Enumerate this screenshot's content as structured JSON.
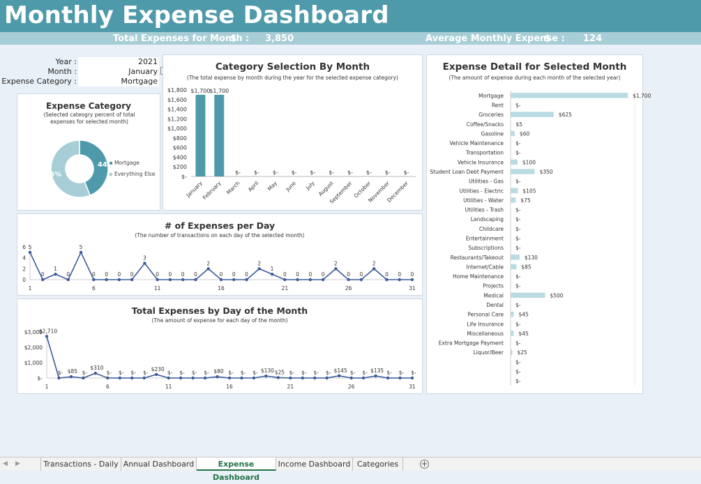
{
  "header": {
    "title": "Monthly Expense Dashboard",
    "total_label": "Total Expenses for Month :",
    "total_currency": "$",
    "total_value": "3,850",
    "avg_label": "Average Monthly Expense :",
    "avg_currency": "$",
    "avg_value": "124"
  },
  "filters": {
    "year_label": "Year :",
    "year_value": "2021",
    "month_label": "Month :",
    "month_value": "January",
    "category_label": "Expense Category :",
    "category_value": "Mortgage"
  },
  "colors": {
    "accent": "#4e9aaa",
    "light_accent": "#a7cdd6",
    "line": "#3c5a99",
    "bar_light": "#b9dbe2"
  },
  "chart_data": [
    {
      "id": "expense-category",
      "type": "pie",
      "title": "Expense Category",
      "subtitle": "(Selected cateogry percent of total expenses for selected month)",
      "slices": [
        {
          "name": "Mortgage",
          "value": 44,
          "label": "44%",
          "color": "#4e9aaa"
        },
        {
          "name": "Everything Else",
          "value": 56,
          "label": "56%",
          "color": "#a7cdd6"
        }
      ],
      "legend": "right"
    },
    {
      "id": "category-by-month",
      "type": "bar",
      "title": "Category Selection By Month",
      "subtitle": "(The total expense by month during the year for the selected expense category)",
      "categories": [
        "January",
        "February",
        "March",
        "April",
        "May",
        "June",
        "July",
        "August",
        "September",
        "October",
        "November",
        "December"
      ],
      "values": [
        1700,
        1700,
        0,
        0,
        0,
        0,
        0,
        0,
        0,
        0,
        0,
        0
      ],
      "labels": [
        "$1,700",
        "$1,700",
        "$-",
        "$-",
        "$-",
        "$-",
        "$-",
        "$-",
        "$-",
        "$-",
        "$-",
        "$-"
      ],
      "yticks": [
        "$-",
        "$200",
        "$400",
        "$600",
        "$800",
        "$1,000",
        "$1,200",
        "$1,400",
        "$1,600",
        "$1,800"
      ],
      "ylim": [
        0,
        1800
      ]
    },
    {
      "id": "expenses-per-day",
      "type": "line",
      "title": "# of Expenses per Day",
      "subtitle": "(The number of transactions on each day of the selected month)",
      "values": [
        5,
        0,
        1,
        0,
        5,
        0,
        0,
        0,
        0,
        3,
        0,
        0,
        0,
        0,
        2,
        0,
        0,
        0,
        2,
        1,
        0,
        0,
        0,
        0,
        2,
        0,
        0,
        2,
        0,
        0,
        0
      ],
      "xticks": [
        "1",
        "6",
        "11",
        "16",
        "21",
        "26",
        "31"
      ],
      "yticks": [
        "0",
        "2",
        "4",
        "6"
      ],
      "ylim": [
        0,
        6
      ]
    },
    {
      "id": "expenses-by-day",
      "type": "line",
      "title": "Total Expenses by Day of the Month",
      "subtitle": "(The amount of expense for each day of the month)",
      "values": [
        2710,
        0,
        85,
        0,
        310,
        0,
        0,
        0,
        0,
        230,
        0,
        0,
        0,
        0,
        80,
        0,
        0,
        0,
        130,
        25,
        0,
        0,
        0,
        0,
        145,
        0,
        0,
        135,
        0,
        0,
        0
      ],
      "labels": [
        "$2,710",
        "$-",
        "$85",
        "$-",
        "$310",
        "$-",
        "$-",
        "$-",
        "$-",
        "$230",
        "$-",
        "$-",
        "$-",
        "$-",
        "$80",
        "$-",
        "$-",
        "$-",
        "$130",
        "$25",
        "$-",
        "$-",
        "$-",
        "$-",
        "$145",
        "$-",
        "$-",
        "$135",
        "$-",
        "$-",
        "$-"
      ],
      "xticks": [
        "1",
        "6",
        "11",
        "16",
        "21",
        "26",
        "31"
      ],
      "yticks": [
        "$-",
        "$1,000",
        "$2,000",
        "$3,000"
      ],
      "ylim": [
        0,
        3000
      ]
    },
    {
      "id": "expense-detail",
      "type": "bar",
      "orientation": "horizontal",
      "title": "Expense Detail for Selected Month",
      "subtitle": "(The amount of expense during each month of the selected year)",
      "categories": [
        "Mortgage",
        "Rent",
        "Groceries",
        "Coffee/Snacks",
        "Gasoline",
        "Vehicle Maintenance",
        "Transportation",
        "Vehicle Insurance",
        "Student Loan Debt Payment",
        "Utilities - Gas",
        "Utilities - Electric",
        "Utilities - Water",
        "Utilities - Trash",
        "Landscaping",
        "Childcare",
        "Entertainment",
        "Subscriptions",
        "Restaurants/Takeout",
        "Internet/Cable",
        "Home Maintenance",
        "Projects",
        "Medical",
        "Dental",
        "Personal Care",
        "Life Insurance",
        "Miscellaneous",
        "Extra Mortgage Payment",
        "Liquor/Beer",
        "",
        "",
        ""
      ],
      "values": [
        1700,
        0,
        625,
        5,
        60,
        0,
        0,
        100,
        350,
        0,
        105,
        75,
        0,
        0,
        0,
        0,
        0,
        130,
        85,
        0,
        0,
        500,
        0,
        45,
        0,
        45,
        0,
        25,
        0,
        0,
        0
      ],
      "labels": [
        "$1,700",
        "$-",
        "$625",
        "$5",
        "$60",
        "$-",
        "$-",
        "$100",
        "$350",
        "$-",
        "$105",
        "$75",
        "$-",
        "$-",
        "$-",
        "$-",
        "$-",
        "$130",
        "$85",
        "$-",
        "$-",
        "$500",
        "$-",
        "$45",
        "$-",
        "$45",
        "$-",
        "$25",
        "$-",
        "$-",
        "$-"
      ],
      "xlim": [
        0,
        1800
      ]
    }
  ],
  "tabs": {
    "items": [
      "Transactions - Daily",
      "Annual Dashboard",
      "Expense Dashboard",
      "Income Dashboard",
      "Categories"
    ],
    "active": "Expense Dashboard"
  }
}
